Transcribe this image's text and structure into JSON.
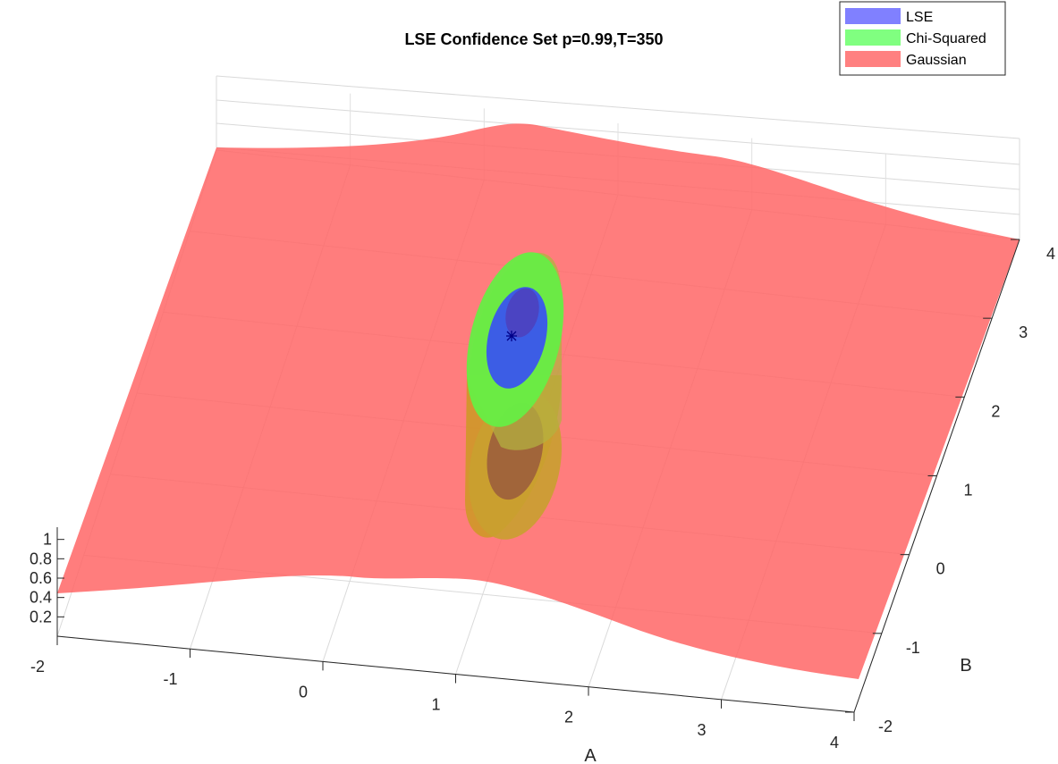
{
  "chart_data": {
    "type": "surface3d",
    "title": "LSE Confidence Set p=0.99,T=350",
    "xlabel": "A",
    "ylabel": "B",
    "zlabel": "",
    "xlim": [
      -2,
      4
    ],
    "ylim": [
      -2,
      4
    ],
    "zlim": [
      0,
      1.2
    ],
    "x_ticks": [
      "-2",
      "-1",
      "0",
      "1",
      "2",
      "3",
      "4"
    ],
    "y_ticks": [
      "-2",
      "-1",
      "0",
      "1",
      "2",
      "3",
      "4"
    ],
    "z_ticks": [
      "0.2",
      "0.4",
      "0.6",
      "0.8",
      "1"
    ],
    "grid": true,
    "legend_position": "top-right",
    "point_estimate": {
      "A": 1.0,
      "B": 2.8,
      "marker": "*"
    },
    "series": [
      {
        "name": "LSE",
        "color": "#8080ff",
        "kind": "ellipse-set",
        "center": [
          1.0,
          2.6
        ],
        "semi_axes": [
          0.35,
          0.75
        ]
      },
      {
        "name": "Chi-Squared",
        "color": "#80ff80",
        "kind": "ellipse-set",
        "center": [
          1.0,
          2.2
        ],
        "semi_axes": [
          0.55,
          1.35
        ]
      },
      {
        "name": "Gaussian",
        "color": "#ff8080",
        "kind": "surface",
        "height_range": [
          0.3,
          1.0
        ]
      }
    ]
  }
}
